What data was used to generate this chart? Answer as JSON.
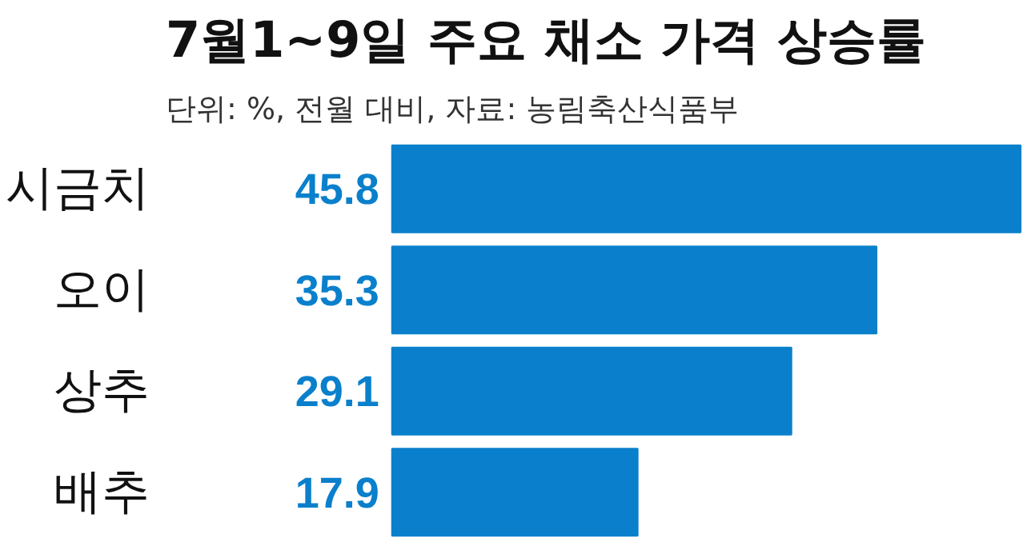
{
  "chart_data": {
    "type": "bar",
    "orientation": "horizontal",
    "title": "7월1~9일 주요 채소 가격 상승률",
    "subtitle": "단위: %, 전월 대비, 자료: 농림축산식품부",
    "categories": [
      "시금치",
      "오이",
      "상추",
      "배추"
    ],
    "values": [
      45.8,
      35.3,
      29.1,
      17.9
    ],
    "color": "#0a80cc",
    "data_labels": true
  }
}
